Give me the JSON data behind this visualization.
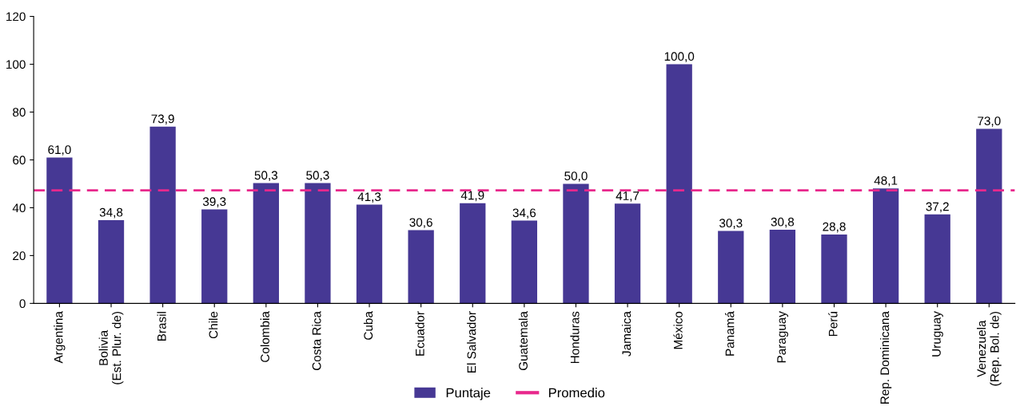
{
  "chart_data": {
    "type": "bar",
    "categories": [
      "Argentina",
      "Bolivia\n(Est. Plur. de)",
      "Brasil",
      "Chile",
      "Colombia",
      "Costa Rica",
      "Cuba",
      "Ecuador",
      "El Salvador",
      "Guatemala",
      "Honduras",
      "Jamaica",
      "México",
      "Panamá",
      "Paraguay",
      "Perú",
      "Rep. Dominicana",
      "Uruguay",
      "Venezuela\n(Rep. Bol. de)"
    ],
    "series": [
      {
        "name": "Puntaje",
        "color": "#463894",
        "values": [
          61.0,
          34.8,
          73.9,
          39.3,
          50.3,
          50.3,
          41.3,
          30.6,
          41.9,
          34.6,
          50.0,
          41.7,
          100.0,
          30.3,
          30.8,
          28.8,
          48.1,
          37.2,
          73.0
        ],
        "value_labels": [
          "61,0",
          "34,8",
          "73,9",
          "39,3",
          "50,3",
          "50,3",
          "41,3",
          "30,6",
          "41,9",
          "34,6",
          "50,0",
          "41,7",
          "100,0",
          "30,3",
          "30,8",
          "28,8",
          "48,1",
          "37,2",
          "73,0"
        ]
      }
    ],
    "ref_lines": [
      {
        "axis": "y",
        "value": 47.3,
        "label": "Promedio",
        "color": "#e8288c",
        "line_style": "dashed"
      }
    ],
    "ylim": [
      0,
      120
    ],
    "yticks": [
      0,
      20,
      40,
      60,
      80,
      100,
      120
    ],
    "grid": false,
    "legend": "bottom"
  }
}
